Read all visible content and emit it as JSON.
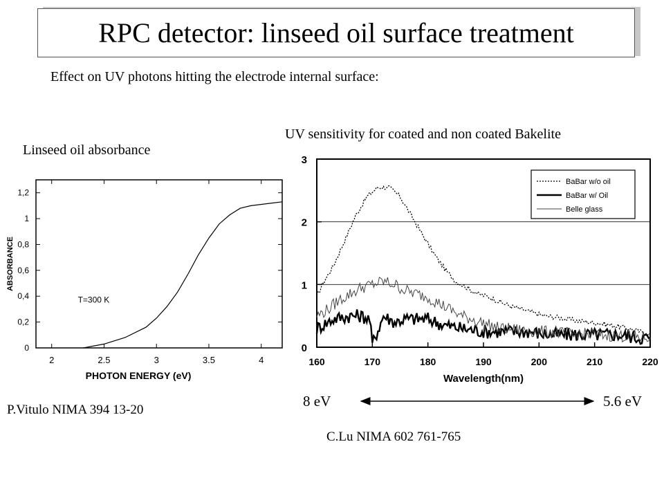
{
  "slide": {
    "title": "RPC detector: linseed oil surface treatment",
    "subtitle": "Effect on UV photons hitting the electrode internal surface:",
    "left_caption": "Linseed oil absorbance",
    "right_caption": "UV sensitivity for coated and non coated Bakelite",
    "left_ref": "P.Vitulo NIMA 394 13-20",
    "right_ref": "C.Lu NIMA 602 761-765",
    "ev_left": "8 eV",
    "ev_right": "5.6 eV"
  },
  "chart_data": [
    {
      "type": "line",
      "xlabel": "PHOTON ENERGY (eV)",
      "ylabel": "ABSORBANCE",
      "xlim": [
        1.85,
        4.2
      ],
      "ylim": [
        0,
        1.3
      ],
      "x_ticks": [
        "2",
        "2.5",
        "3",
        "3.5",
        "4"
      ],
      "x_tick_values": [
        2,
        2.5,
        3,
        3.5,
        4
      ],
      "y_ticks": [
        "0",
        "0,2",
        "0,4",
        "0,6",
        "0,8",
        "1",
        "1,2"
      ],
      "y_tick_values": [
        0,
        0.2,
        0.4,
        0.6,
        0.8,
        1.0,
        1.2
      ],
      "annotation": "T=300 K",
      "grid": false,
      "series": [
        {
          "x": [
            2.3,
            2.5,
            2.7,
            2.9,
            3.0,
            3.1,
            3.2,
            3.3,
            3.4,
            3.5,
            3.6,
            3.7,
            3.8,
            3.9,
            4.0,
            4.1,
            4.2
          ],
          "y": [
            0.0,
            0.03,
            0.08,
            0.16,
            0.23,
            0.32,
            0.43,
            0.57,
            0.72,
            0.85,
            0.96,
            1.03,
            1.08,
            1.1,
            1.11,
            1.12,
            1.13
          ]
        }
      ]
    },
    {
      "type": "line",
      "xlabel": "Wavelength(nm)",
      "ylabel": "",
      "xlim": [
        160,
        220
      ],
      "ylim": [
        0,
        3
      ],
      "x_ticks": [
        "160",
        "170",
        "180",
        "190",
        "200",
        "210",
        "220"
      ],
      "x_tick_values": [
        160,
        170,
        180,
        190,
        200,
        210,
        220
      ],
      "y_ticks": [
        "0",
        "1",
        "2",
        "3"
      ],
      "y_tick_values": [
        0,
        1,
        2,
        3
      ],
      "grid": "horizontal",
      "legend": "top-right",
      "series": [
        {
          "name": "BaBar w/o oil",
          "style": "dotted",
          "x": [
            160,
            161,
            163,
            165,
            167,
            169,
            171,
            173,
            175,
            177,
            179,
            181,
            183,
            185,
            187,
            189,
            191,
            193,
            195,
            197,
            199,
            201,
            203,
            205,
            207,
            209,
            211,
            213,
            215,
            217,
            220
          ],
          "y": [
            0.8,
            1.0,
            1.3,
            1.7,
            2.1,
            2.4,
            2.55,
            2.55,
            2.4,
            2.1,
            1.8,
            1.5,
            1.25,
            1.05,
            0.95,
            0.85,
            0.8,
            0.72,
            0.65,
            0.6,
            0.55,
            0.5,
            0.48,
            0.45,
            0.42,
            0.4,
            0.38,
            0.35,
            0.32,
            0.28,
            0.2
          ]
        },
        {
          "name": "BaBar w/ Oil",
          "style": "thick",
          "x": [
            160,
            163,
            166,
            168,
            169.5,
            170,
            172,
            174,
            176,
            178,
            180,
            183,
            186,
            190,
            194,
            198,
            202,
            206,
            210,
            214,
            218,
            220
          ],
          "y": [
            0.3,
            0.45,
            0.5,
            0.5,
            0.45,
            0.05,
            0.5,
            0.4,
            0.45,
            0.45,
            0.45,
            0.35,
            0.3,
            0.25,
            0.25,
            0.25,
            0.2,
            0.2,
            0.2,
            0.2,
            0.15,
            0.15
          ]
        },
        {
          "name": "Belle glass",
          "style": "thin",
          "x": [
            160,
            162,
            164,
            166,
            168,
            170,
            172,
            174,
            176,
            178,
            180,
            182,
            184,
            186,
            188,
            190,
            193,
            196,
            200,
            205,
            210,
            215,
            220
          ],
          "y": [
            0.5,
            0.6,
            0.75,
            0.85,
            0.95,
            1.0,
            1.05,
            1.0,
            0.9,
            0.85,
            0.8,
            0.7,
            0.6,
            0.5,
            0.45,
            0.38,
            0.3,
            0.28,
            0.25,
            0.22,
            0.2,
            0.18,
            0.15
          ]
        }
      ]
    }
  ]
}
